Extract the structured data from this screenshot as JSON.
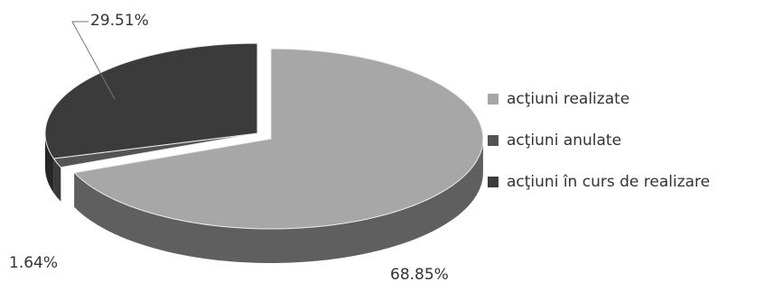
{
  "chart_data": {
    "type": "pie",
    "pie_3d": true,
    "exploded_slice": 0,
    "legend_position": "right",
    "slices": [
      {
        "label": "acţiuni realizate",
        "value": 68.85,
        "data_label": "68.85%",
        "color": "#a7a7a7",
        "side_color": "#5f5f5f"
      },
      {
        "label": "acţiuni anulate",
        "value": 1.64,
        "data_label": "1.64%",
        "color": "#545454",
        "side_color": "#3a3a3a"
      },
      {
        "label": "acţiuni în curs de realizare",
        "value": 29.51,
        "data_label": "29.51%",
        "color": "#3b3b3b",
        "side_color": "#262626"
      }
    ]
  }
}
